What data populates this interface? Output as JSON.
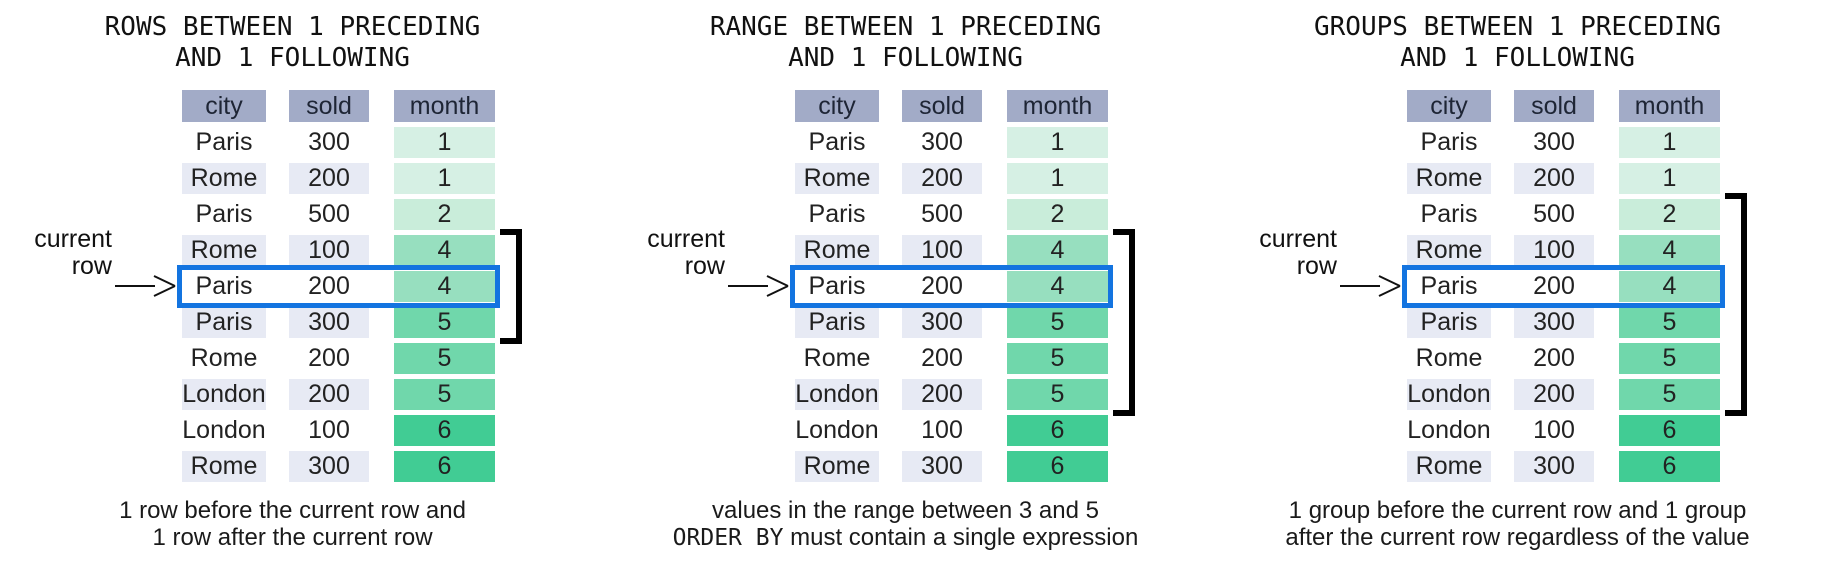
{
  "colors": {
    "header_bg": "#a2abc7",
    "row_alt_bg": "#e7eaf4",
    "current_row_border": "#1374e0",
    "bracket": "#000000",
    "month_shades": {
      "1": "#d6f0e4",
      "2": "#c9edda",
      "4": "#97dfbf",
      "5": "#70d7ab",
      "6": "#41cc94"
    }
  },
  "table": {
    "columns": [
      "city",
      "sold",
      "month"
    ],
    "rows": [
      {
        "city": "Paris",
        "sold": "300",
        "month": "1"
      },
      {
        "city": "Rome",
        "sold": "200",
        "month": "1"
      },
      {
        "city": "Paris",
        "sold": "500",
        "month": "2"
      },
      {
        "city": "Rome",
        "sold": "100",
        "month": "4"
      },
      {
        "city": "Paris",
        "sold": "200",
        "month": "4"
      },
      {
        "city": "Paris",
        "sold": "300",
        "month": "5"
      },
      {
        "city": "Rome",
        "sold": "200",
        "month": "5"
      },
      {
        "city": "London",
        "sold": "200",
        "month": "5"
      },
      {
        "city": "London",
        "sold": "100",
        "month": "6"
      },
      {
        "city": "Rome",
        "sold": "300",
        "month": "6"
      }
    ],
    "current_row_index": 5
  },
  "current_row_label": {
    "line1": "current",
    "line2": "row"
  },
  "panels": [
    {
      "title_line1": "ROWS BETWEEN 1 PRECEDING",
      "title_line2": "AND 1 FOLLOWING",
      "caption_line1": "1 row before the current row and",
      "caption_line2": "1 row after the current row",
      "frame_start_row": 4,
      "frame_end_row": 6
    },
    {
      "title_line1": "RANGE BETWEEN 1 PRECEDING",
      "title_line2": "AND 1 FOLLOWING",
      "caption_line1": "values in the range between 3 and 5",
      "caption_line2_keyword": "ORDER BY",
      "caption_line2": " must contain a single expression",
      "frame_start_row": 4,
      "frame_end_row": 8
    },
    {
      "title_line1": "GROUPS BETWEEN 1 PRECEDING",
      "title_line2": "AND 1 FOLLOWING",
      "caption_line1": "1 group before the current row and 1 group",
      "caption_line2": "after the current row regardless of the value",
      "frame_start_row": 3,
      "frame_end_row": 8
    }
  ]
}
